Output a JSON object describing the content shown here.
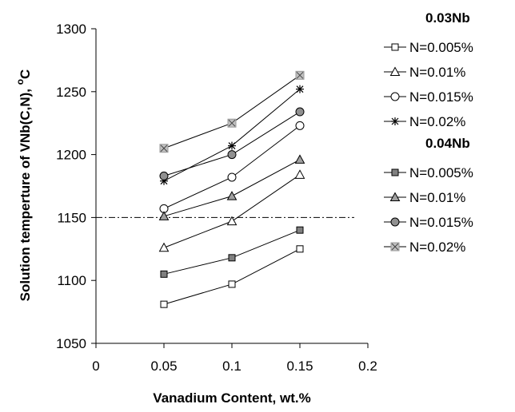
{
  "chart_data": {
    "type": "line",
    "xlabel": "Vanadium Content, wt.%",
    "ylabel_main": "Solution temperture of VNb(C,N), ",
    "ylabel_unit": "C",
    "ylabel_sup": "o",
    "xlim": [
      0,
      0.2
    ],
    "ylim": [
      1050,
      1300
    ],
    "xticks": [
      "0",
      "0.05",
      "0.1",
      "0.15",
      "0.2"
    ],
    "yticks": [
      "1050",
      "1100",
      "1150",
      "1200",
      "1250",
      "1300"
    ],
    "x": [
      0.05,
      0.1,
      0.15
    ],
    "reference_line": {
      "y": 1150,
      "x_range": [
        0,
        0.19
      ],
      "style": "dash-dot"
    },
    "groups": [
      {
        "label": "0.03Nb",
        "series": [
          {
            "name": "N=0.005%",
            "marker": "square",
            "fill": "#ffffff",
            "values": [
              1081,
              1097,
              1125
            ]
          },
          {
            "name": "N=0.01%",
            "marker": "triangle",
            "fill": "#ffffff",
            "values": [
              1126,
              1147,
              1184
            ]
          },
          {
            "name": "N=0.015%",
            "marker": "circle",
            "fill": "#ffffff",
            "values": [
              1157,
              1182,
              1223
            ]
          },
          {
            "name": "N=0.02%",
            "marker": "star",
            "fill": "#000000",
            "values": [
              1179,
              1207,
              1252
            ]
          }
        ]
      },
      {
        "label": "0.04Nb",
        "series": [
          {
            "name": "N=0.005%",
            "marker": "square",
            "fill": "#808080",
            "values": [
              1105,
              1118,
              1140
            ]
          },
          {
            "name": "N=0.01%",
            "marker": "triangle",
            "fill": "#a0a0a0",
            "values": [
              1151,
              1167,
              1196
            ]
          },
          {
            "name": "N=0.015%",
            "marker": "circle",
            "fill": "#909090",
            "values": [
              1183,
              1200,
              1234
            ]
          },
          {
            "name": "N=0.02%",
            "marker": "xsquare",
            "fill": "#c0c0c0",
            "values": [
              1205,
              1225,
              1263
            ]
          }
        ]
      }
    ],
    "colors": {
      "line": "#000000",
      "axis": "#000000"
    },
    "legend_position": "right",
    "grid": false
  }
}
